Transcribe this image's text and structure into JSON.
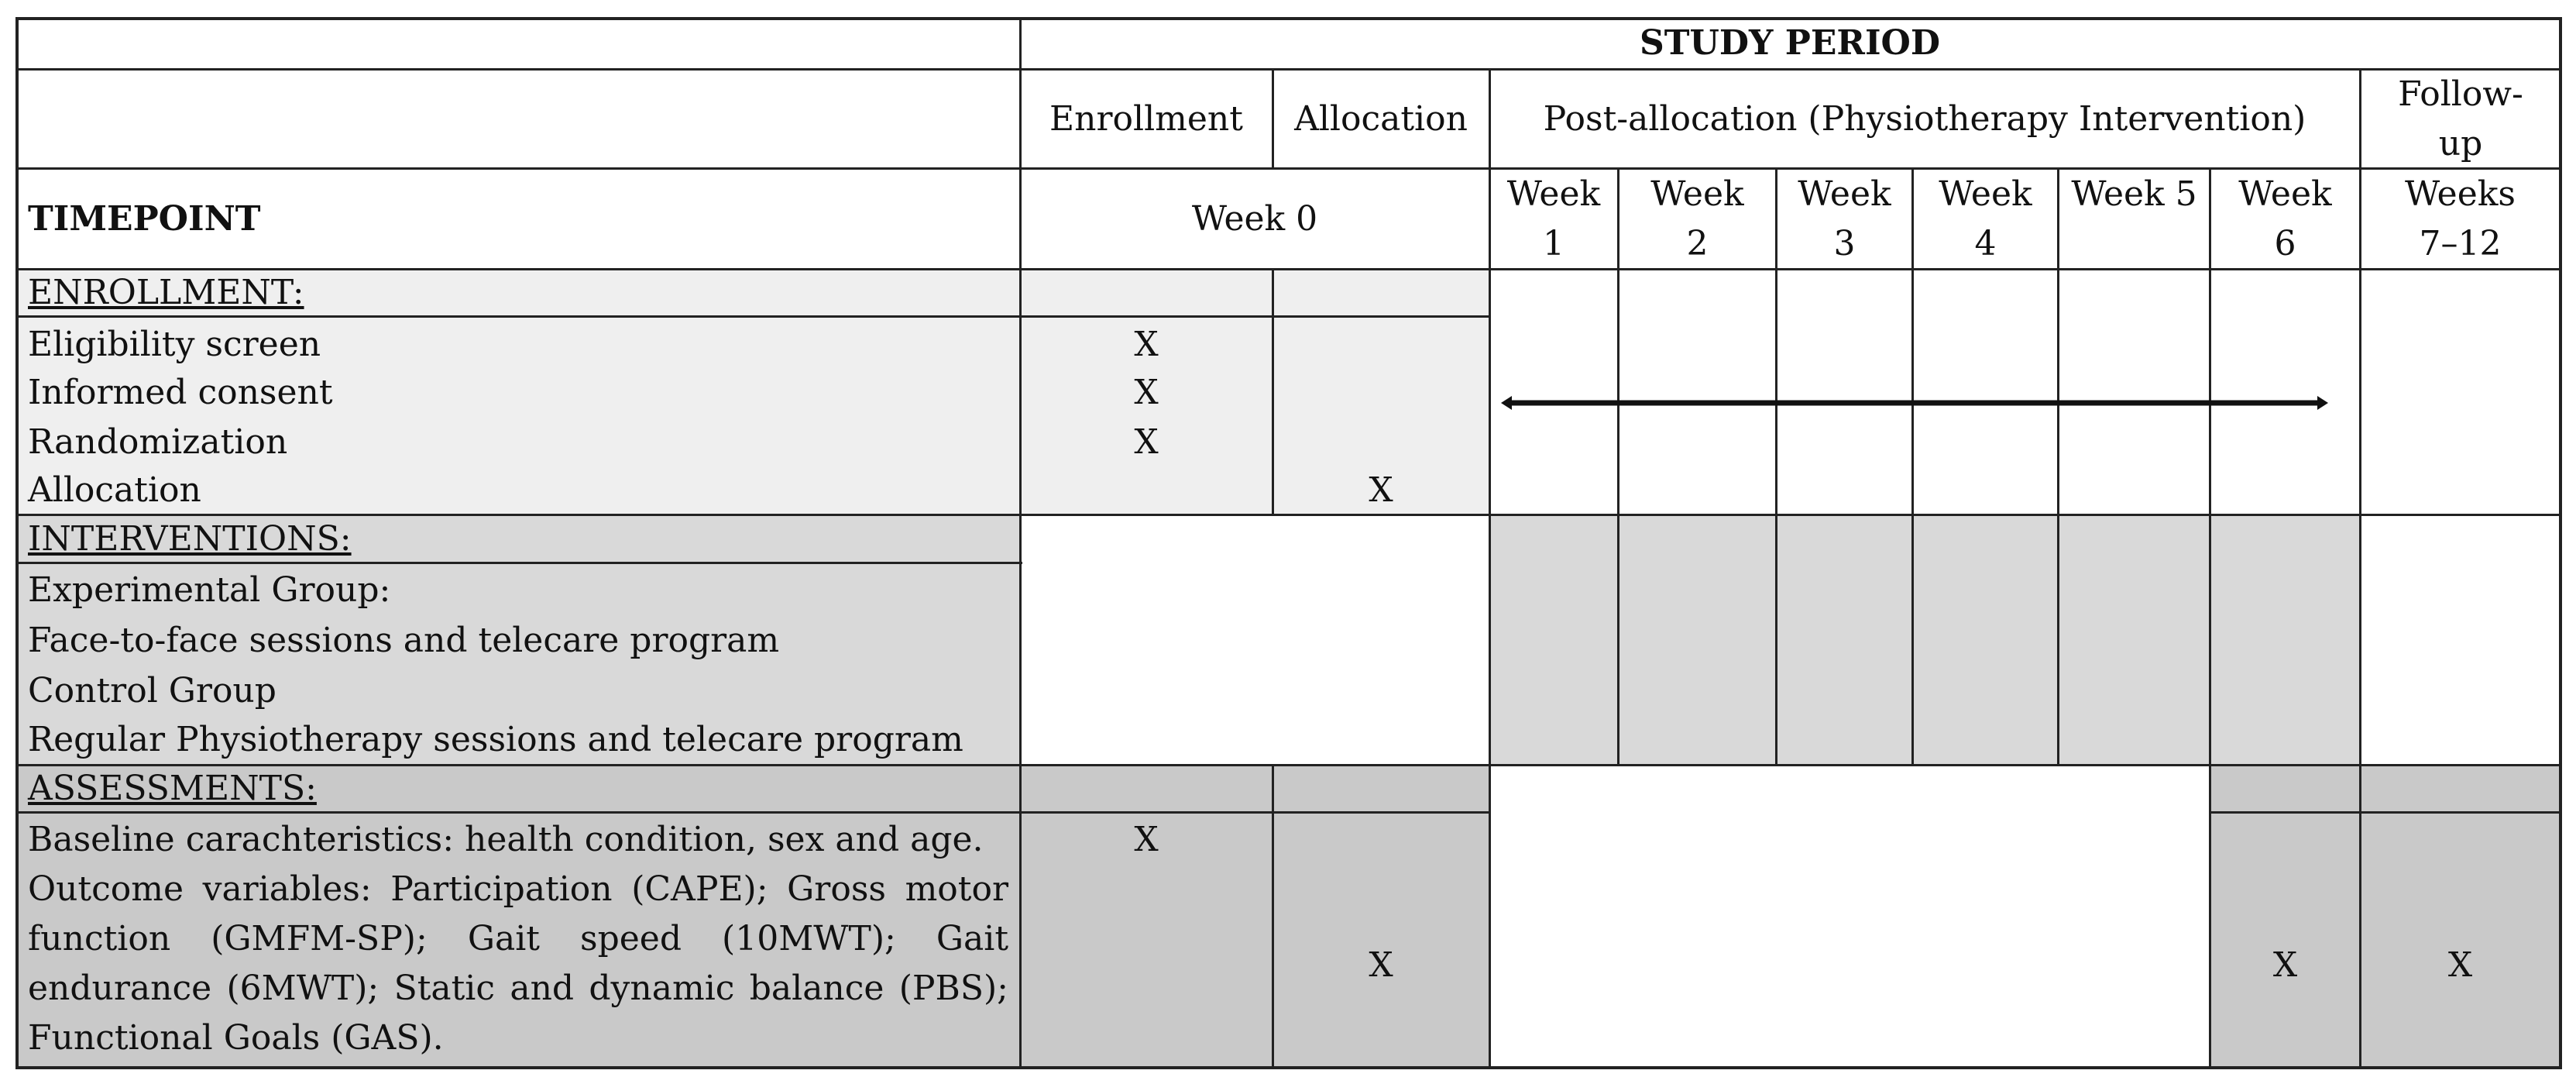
{
  "header": {
    "study_period": "STUDY PERIOD",
    "enrollment": "Enrollment",
    "allocation": "Allocation",
    "post_allocation": "Post-allocation (Physiotherapy Intervention)",
    "follow_up": "Follow-up"
  },
  "timepoint": {
    "label": "TIMEPOINT",
    "week0": "Week 0",
    "weeks": [
      {
        "line1": "Week",
        "line2": "1"
      },
      {
        "line1": "Week",
        "line2": "2"
      },
      {
        "line1": "Week",
        "line2": "3"
      },
      {
        "line1": "Week",
        "line2": "4"
      },
      {
        "line1": "Week 5",
        "line2": ""
      },
      {
        "line1": "Week",
        "line2": "6"
      },
      {
        "line1": "Weeks",
        "line2": "7–12"
      }
    ]
  },
  "enrollment_section": {
    "heading": "ENROLLMENT:",
    "rows": [
      "Eligibility screen",
      "Informed consent",
      "Randomization",
      "Allocation"
    ],
    "enroll_marks": [
      "X",
      "X",
      "X"
    ],
    "alloc_mark": "X"
  },
  "interventions_section": {
    "heading": "INTERVENTIONS:",
    "rows": [
      "Experimental Group:",
      "Face-to-face sessions and telecare program",
      "Control Group",
      "Regular Physiotherapy sessions and telecare program"
    ]
  },
  "assessments_section": {
    "heading": "ASSESSMENTS:",
    "baseline": "Baseline carachteristics: health condition, sex and age.",
    "baseline_mark": "X",
    "outcomes": "Outcome variables: Participation (CAPE); Gross motor function (GMFM-SP); Gait speed (10MWT); Gait endurance (6MWT); Static and dynamic balance (PBS); Functional Goals (GAS).",
    "alloc_mark": "X",
    "week6_mark": "X",
    "followup_mark": "X"
  },
  "colors": {
    "light_fill": "#efefef",
    "mid_fill": "#d9d9d9",
    "dark_fill": "#c9c9c9",
    "line": "#222222"
  }
}
